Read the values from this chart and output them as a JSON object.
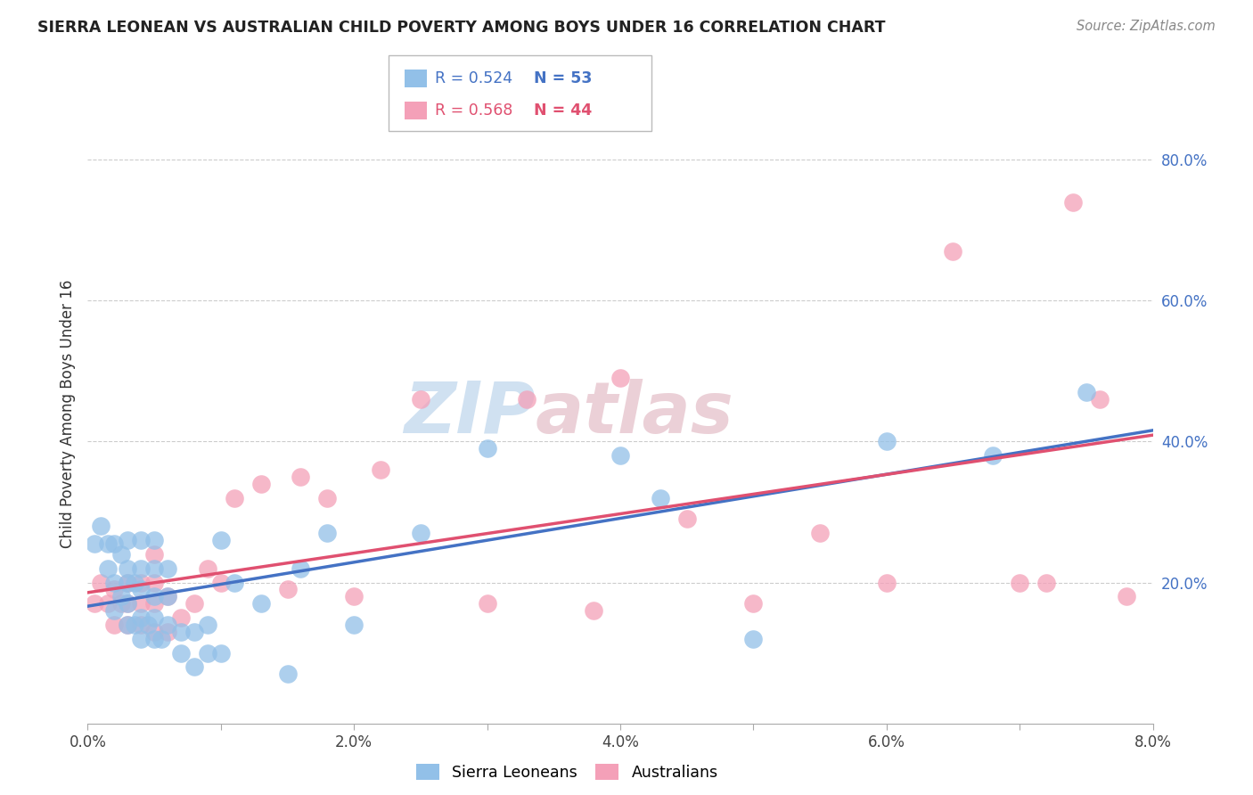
{
  "title": "SIERRA LEONEAN VS AUSTRALIAN CHILD POVERTY AMONG BOYS UNDER 16 CORRELATION CHART",
  "source": "Source: ZipAtlas.com",
  "ylabel": "Child Poverty Among Boys Under 16",
  "xlim": [
    0.0,
    0.08
  ],
  "ylim": [
    0.0,
    0.88
  ],
  "xticks": [
    0.0,
    0.01,
    0.02,
    0.03,
    0.04,
    0.05,
    0.06,
    0.07,
    0.08
  ],
  "xtick_labels": [
    "0.0%",
    "",
    "2.0%",
    "",
    "4.0%",
    "",
    "6.0%",
    "",
    "8.0%"
  ],
  "yticks": [
    0.2,
    0.4,
    0.6,
    0.8
  ],
  "ytick_labels": [
    "20.0%",
    "40.0%",
    "60.0%",
    "80.0%"
  ],
  "blue_color": "#92C0E8",
  "pink_color": "#F4A0B8",
  "blue_line_color": "#4472C4",
  "pink_line_color": "#E05070",
  "legend_blue_R": "R = 0.524",
  "legend_blue_N": "N = 53",
  "legend_pink_R": "R = 0.568",
  "legend_pink_N": "N = 44",
  "watermark_zip": "ZIP",
  "watermark_atlas": "atlas",
  "sl_x": [
    0.0005,
    0.001,
    0.0015,
    0.0015,
    0.002,
    0.002,
    0.002,
    0.0025,
    0.0025,
    0.003,
    0.003,
    0.003,
    0.003,
    0.003,
    0.0035,
    0.0035,
    0.004,
    0.004,
    0.004,
    0.004,
    0.004,
    0.0045,
    0.005,
    0.005,
    0.005,
    0.005,
    0.005,
    0.0055,
    0.006,
    0.006,
    0.006,
    0.007,
    0.007,
    0.008,
    0.008,
    0.009,
    0.009,
    0.01,
    0.01,
    0.011,
    0.013,
    0.015,
    0.016,
    0.018,
    0.02,
    0.025,
    0.03,
    0.04,
    0.043,
    0.05,
    0.06,
    0.068,
    0.075
  ],
  "sl_y": [
    0.255,
    0.28,
    0.22,
    0.255,
    0.16,
    0.2,
    0.255,
    0.18,
    0.24,
    0.14,
    0.17,
    0.2,
    0.22,
    0.26,
    0.14,
    0.2,
    0.12,
    0.15,
    0.19,
    0.22,
    0.26,
    0.14,
    0.12,
    0.15,
    0.18,
    0.22,
    0.26,
    0.12,
    0.14,
    0.18,
    0.22,
    0.1,
    0.13,
    0.08,
    0.13,
    0.1,
    0.14,
    0.1,
    0.26,
    0.2,
    0.17,
    0.07,
    0.22,
    0.27,
    0.14,
    0.27,
    0.39,
    0.38,
    0.32,
    0.12,
    0.4,
    0.38,
    0.47
  ],
  "au_x": [
    0.0005,
    0.001,
    0.0015,
    0.002,
    0.002,
    0.0025,
    0.003,
    0.003,
    0.003,
    0.004,
    0.004,
    0.004,
    0.005,
    0.005,
    0.005,
    0.005,
    0.006,
    0.006,
    0.007,
    0.008,
    0.009,
    0.01,
    0.011,
    0.013,
    0.015,
    0.016,
    0.018,
    0.02,
    0.022,
    0.025,
    0.03,
    0.033,
    0.038,
    0.04,
    0.045,
    0.05,
    0.055,
    0.06,
    0.065,
    0.07,
    0.072,
    0.074,
    0.076,
    0.078
  ],
  "au_y": [
    0.17,
    0.2,
    0.17,
    0.14,
    0.19,
    0.17,
    0.14,
    0.17,
    0.2,
    0.14,
    0.17,
    0.2,
    0.13,
    0.17,
    0.2,
    0.24,
    0.13,
    0.18,
    0.15,
    0.17,
    0.22,
    0.2,
    0.32,
    0.34,
    0.19,
    0.35,
    0.32,
    0.18,
    0.36,
    0.46,
    0.17,
    0.46,
    0.16,
    0.49,
    0.29,
    0.17,
    0.27,
    0.2,
    0.67,
    0.2,
    0.2,
    0.74,
    0.46,
    0.18
  ]
}
